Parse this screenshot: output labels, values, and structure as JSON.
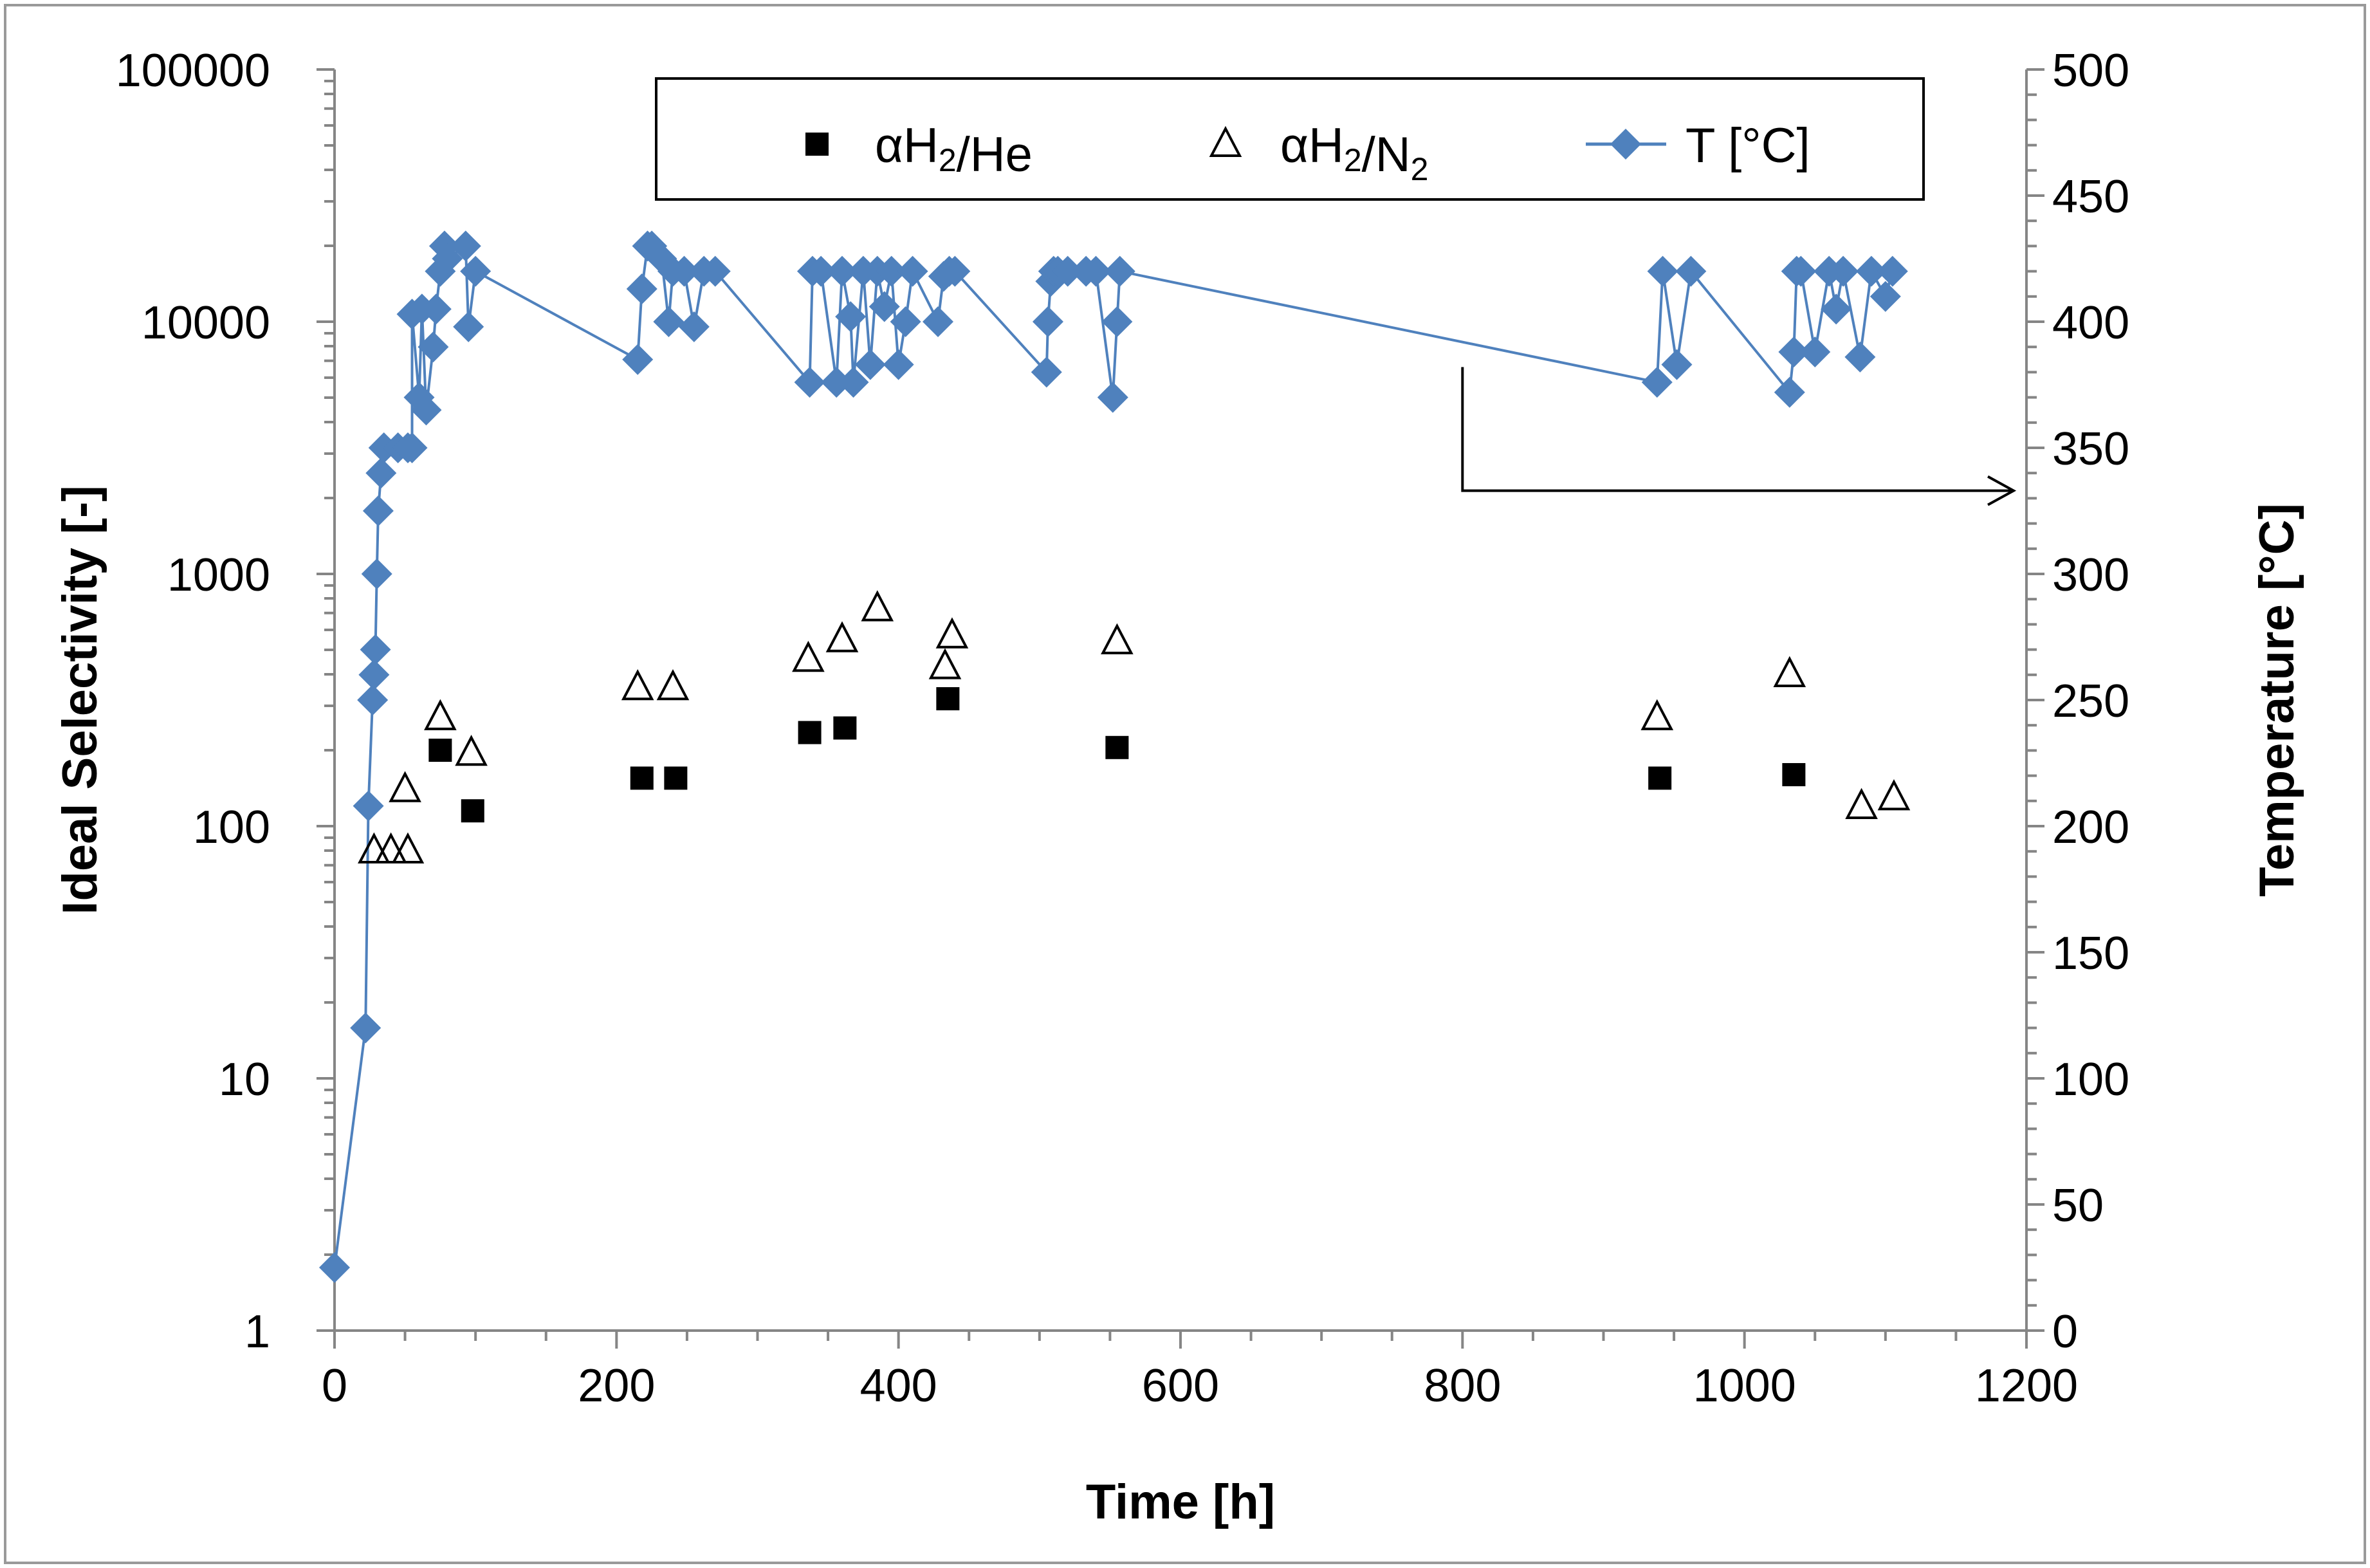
{
  "chart_data": {
    "type": "scatter",
    "xlabel": "Time [h]",
    "ylabel_left": "Ideal Selectivity [-]",
    "ylabel_right": "Temperature [°C]",
    "xlim": [
      0,
      1200
    ],
    "xticks": [
      "0",
      "200",
      "400",
      "600",
      "800",
      "1000",
      "1200"
    ],
    "ylim_left": [
      1,
      100000
    ],
    "yscale_left": "log",
    "yticks_left": [
      "1",
      "10",
      "100",
      "1000",
      "10000",
      "100000"
    ],
    "ylim_right": [
      0,
      500
    ],
    "yticks_right": [
      "0",
      "50",
      "100",
      "150",
      "200",
      "250",
      "300",
      "350",
      "400",
      "450",
      "500"
    ],
    "legend": {
      "placement": "top-right",
      "entries": [
        {
          "key": "he",
          "label_prefix": "αH",
          "sub": "2",
          "label_suffix": "/He",
          "label_suffix_sub": ""
        },
        {
          "key": "n2",
          "label_prefix": "αH",
          "sub": "2",
          "label_suffix": "/N",
          "label_suffix_sub": "2"
        },
        {
          "key": "t",
          "label_prefix": "T [°C]",
          "sub": "",
          "label_suffix": "",
          "label_suffix_sub": ""
        }
      ]
    },
    "annotation": "arrow from temperature series pointing to right axis",
    "series": [
      {
        "key": "he",
        "name": "αH2/He",
        "axis": "left",
        "marker": "square",
        "color": "#000000",
        "x": [
          75,
          98,
          218,
          242,
          337,
          362,
          435,
          555,
          940,
          1035
        ],
        "y": [
          200,
          115,
          155,
          155,
          235,
          245,
          320,
          205,
          155,
          160
        ]
      },
      {
        "key": "n2",
        "name": "αH2/N2",
        "axis": "left",
        "marker": "triangle-open",
        "color": "#000000",
        "x": [
          28,
          40,
          50,
          52,
          75,
          97,
          215,
          240,
          336,
          360,
          385,
          433,
          438,
          555,
          938,
          1032,
          1083,
          1106
        ],
        "y": [
          80,
          80,
          140,
          80,
          270,
          195,
          355,
          355,
          460,
          550,
          730,
          430,
          570,
          540,
          270,
          400,
          120,
          130
        ]
      },
      {
        "key": "t",
        "name": "T [°C]",
        "axis": "right",
        "marker": "diamond",
        "color": "#4F81BD",
        "x": [
          0,
          22,
          24,
          27,
          28,
          29,
          30,
          31,
          33,
          35,
          45,
          52,
          55,
          55,
          60,
          62,
          65,
          70,
          72,
          75,
          78,
          80,
          93,
          95,
          100,
          215,
          218,
          222,
          225,
          232,
          237,
          240,
          248,
          255,
          262,
          270,
          337,
          339,
          345,
          356,
          360,
          366,
          368,
          375,
          380,
          385,
          390,
          395,
          400,
          405,
          410,
          428,
          432,
          436,
          440,
          505,
          506,
          508,
          510,
          513,
          520,
          533,
          540,
          552,
          555,
          557,
          938,
          942,
          952,
          962,
          1032,
          1035,
          1037,
          1040,
          1050,
          1060,
          1065,
          1070,
          1082,
          1090,
          1100,
          1105
        ],
        "y": [
          25,
          120,
          208,
          250,
          260,
          270,
          300,
          325,
          340,
          350,
          350,
          350,
          350,
          403,
          370,
          405,
          365,
          390,
          405,
          420,
          430,
          425,
          430,
          398,
          420,
          385,
          413,
          430,
          430,
          425,
          400,
          420,
          420,
          398,
          420,
          420,
          376,
          420,
          420,
          376,
          420,
          402,
          376,
          420,
          383,
          420,
          406,
          420,
          383,
          400,
          420,
          400,
          418,
          420,
          420,
          380,
          400,
          416,
          420,
          420,
          420,
          420,
          420,
          370,
          400,
          420,
          376,
          420,
          383,
          420,
          372,
          388,
          420,
          420,
          388,
          420,
          405,
          420,
          386,
          420,
          410,
          420
        ]
      }
    ]
  },
  "colors": {
    "temperature": "#4F81BD",
    "selectivity": "#000000",
    "axis": "#858585"
  }
}
